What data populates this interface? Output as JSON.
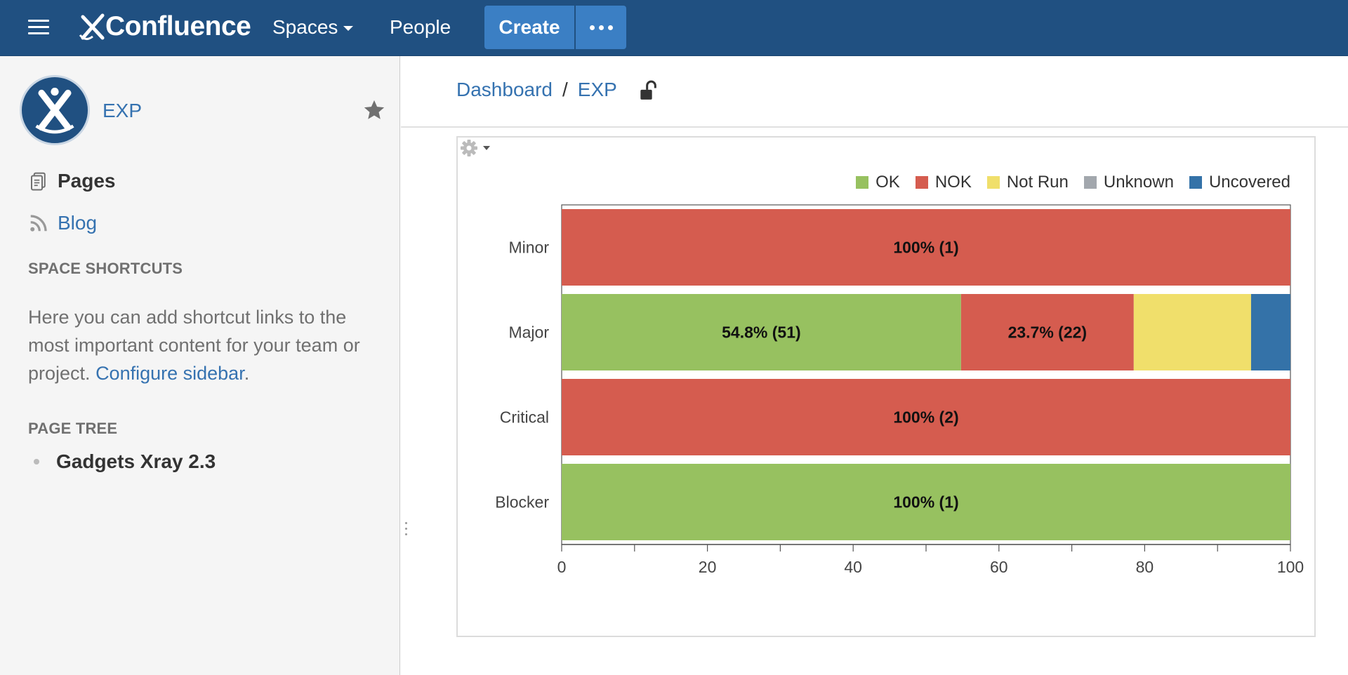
{
  "header": {
    "logo_text": "Confluence",
    "nav": {
      "spaces": "Spaces",
      "people": "People"
    },
    "create_label": "Create"
  },
  "sidebar": {
    "space_name": "EXP",
    "pages_label": "Pages",
    "blog_label": "Blog",
    "shortcuts_heading": "SPACE SHORTCUTS",
    "shortcuts_text": "Here you can add shortcut links to the most important content for your team or project.",
    "configure_link": "Configure sidebar",
    "page_tree_heading": "PAGE TREE",
    "page_tree_items": [
      "Gadgets Xray 2.3"
    ]
  },
  "breadcrumb": {
    "items": [
      "Dashboard",
      "EXP"
    ],
    "separator": "/"
  },
  "chart_data": {
    "type": "bar",
    "orientation": "horizontal",
    "stacked": true,
    "categories": [
      "Minor",
      "Major",
      "Critical",
      "Blocker"
    ],
    "series": [
      {
        "name": "OK",
        "color": "#97c160",
        "values": [
          0,
          54.8,
          0,
          100
        ],
        "labels": [
          "",
          "54.8% (51)",
          "",
          "100% (1)"
        ]
      },
      {
        "name": "NOK",
        "color": "#d55c4f",
        "values": [
          100,
          23.7,
          100,
          0
        ],
        "labels": [
          "100% (1)",
          "23.7% (22)",
          "100% (2)",
          ""
        ]
      },
      {
        "name": "Not Run",
        "color": "#f0df6b",
        "values": [
          0,
          16.1,
          0,
          0
        ],
        "labels": [
          "",
          "",
          "",
          ""
        ]
      },
      {
        "name": "Unknown",
        "color": "#a2a7ad",
        "values": [
          0,
          0,
          0,
          0
        ],
        "labels": [
          "",
          "",
          "",
          ""
        ]
      },
      {
        "name": "Uncovered",
        "color": "#3472a8",
        "values": [
          0,
          5.4,
          0,
          0
        ],
        "labels": [
          "",
          "",
          "",
          ""
        ]
      }
    ],
    "xlim": [
      0,
      100
    ],
    "xticks": [
      0,
      20,
      40,
      60,
      80,
      100
    ],
    "legend": "top-right",
    "grid": false
  }
}
